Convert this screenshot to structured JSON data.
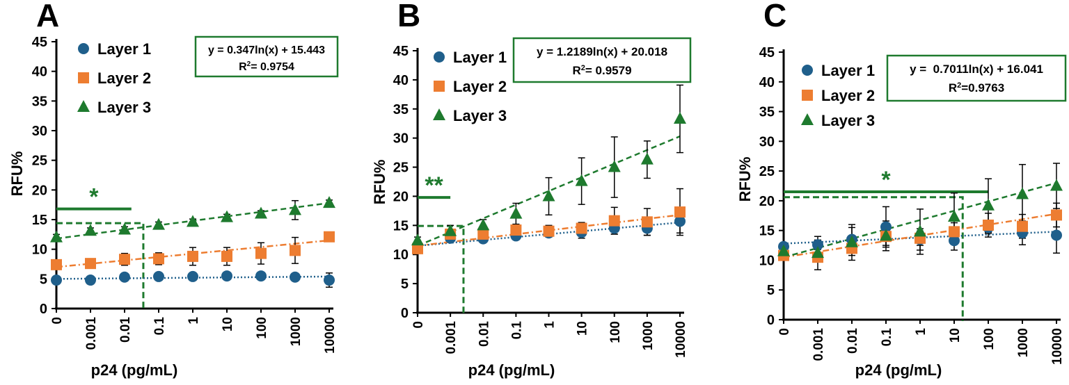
{
  "colors": {
    "layer1": "#1f5f8b",
    "layer2": "#ed7d31",
    "layer3": "#1e7a2e",
    "threshold": "#1e7a2e",
    "axis": "#000000"
  },
  "chart_data": [
    {
      "type": "scatter",
      "panel_label": "A",
      "xlabel": "p24 (pg/mL)",
      "ylabel": "RFU%",
      "categories": [
        "0",
        "0.001",
        "0.01",
        "0.1",
        "1",
        "10",
        "100",
        "1000",
        "10000"
      ],
      "ylim": [
        0,
        45
      ],
      "yticks": [
        "0",
        "5",
        "10",
        "15",
        "20",
        "25",
        "30",
        "35",
        "40",
        "45"
      ],
      "grid": false,
      "legend_position": "top-left",
      "series": [
        {
          "name": "Layer 1",
          "marker": "circle",
          "trend": "dotted",
          "values": [
            4.8,
            4.8,
            5.3,
            5.4,
            5.4,
            5.5,
            5.5,
            5.3,
            4.8
          ],
          "errors": [
            0.5,
            0.4,
            0.5,
            0.4,
            0.4,
            0.4,
            0.4,
            0.5,
            1.2
          ],
          "trend_line": [
            5.0,
            5.4
          ]
        },
        {
          "name": "Layer 2",
          "marker": "square",
          "trend": "dashdot",
          "values": [
            7.4,
            7.6,
            8.3,
            8.4,
            8.8,
            8.8,
            9.3,
            9.8,
            12.1
          ],
          "errors": [
            0.6,
            0.4,
            1.0,
            1.0,
            1.5,
            1.5,
            1.8,
            2.2,
            0.6
          ],
          "trend_line": [
            7.0,
            11.5
          ]
        },
        {
          "name": "Layer 3",
          "marker": "triangle",
          "trend": "dashed",
          "values": [
            12.0,
            13.1,
            13.3,
            14.1,
            14.6,
            15.4,
            16.0,
            16.6,
            17.8
          ],
          "errors": [
            0.5,
            0.5,
            0.5,
            0.5,
            0.5,
            0.5,
            0.5,
            1.6,
            0.5
          ],
          "trend_line": [
            11.8,
            17.8
          ]
        }
      ],
      "equation": {
        "line1": "y = 0.347ln(x) + 15.443",
        "r2_prefix": "R",
        "r2_value": "= 0.9754"
      },
      "significance": {
        "label": "*",
        "bar_y": 16.8,
        "bar_from": 0,
        "bar_to": 2.2
      },
      "lod": {
        "y": 14.4,
        "x": 2.55
      }
    },
    {
      "type": "scatter",
      "panel_label": "B",
      "xlabel": "p24 (pg/mL)",
      "ylabel": "RFU%",
      "categories": [
        "0",
        "0.001",
        "0.01",
        "0.1",
        "1",
        "10",
        "100",
        "1000",
        "10000"
      ],
      "ylim": [
        0,
        45
      ],
      "yticks": [
        "0",
        "5",
        "10",
        "15",
        "20",
        "25",
        "30",
        "35",
        "40",
        "45"
      ],
      "grid": false,
      "legend_position": "top-left",
      "series": [
        {
          "name": "Layer 1",
          "marker": "circle",
          "trend": "dotted",
          "values": [
            11.0,
            12.8,
            12.7,
            13.2,
            13.7,
            13.8,
            14.5,
            14.5,
            15.7
          ],
          "errors": [
            0.6,
            0.5,
            0.5,
            0.5,
            0.5,
            1.0,
            1.0,
            1.2,
            2.0
          ],
          "trend_line": [
            11.5,
            15.5
          ]
        },
        {
          "name": "Layer 2",
          "marker": "square",
          "trend": "dashdot",
          "values": [
            11.0,
            13.5,
            13.5,
            14.2,
            14.0,
            14.5,
            15.8,
            15.6,
            17.3
          ],
          "errors": [
            0.6,
            0.8,
            0.8,
            1.0,
            1.0,
            1.0,
            2.3,
            2.3,
            4.0
          ],
          "trend_line": [
            11.5,
            16.8
          ]
        },
        {
          "name": "Layer 3",
          "marker": "triangle",
          "trend": "dashed",
          "values": [
            12.4,
            14.0,
            15.0,
            17.0,
            20.0,
            22.6,
            25.0,
            26.3,
            33.3
          ],
          "errors": [
            0.6,
            1.0,
            1.0,
            1.8,
            3.2,
            4.0,
            5.2,
            3.2,
            5.8
          ],
          "trend_line": [
            11.5,
            30.3
          ]
        }
      ],
      "equation": {
        "line1": "y = 1.2189ln(x) + 20.018",
        "r2_prefix": "R",
        "r2_value": "= 0.9579"
      },
      "significance": {
        "label": "**",
        "bar_y": 19.8,
        "bar_from": 0,
        "bar_to": 1.0
      },
      "lod": {
        "y": 14.9,
        "x": 1.4
      }
    },
    {
      "type": "scatter",
      "panel_label": "C",
      "xlabel": "p24 (pg/mL)",
      "ylabel": "RFU%",
      "categories": [
        "0",
        "0.001",
        "0.01",
        "0.1",
        "1",
        "10",
        "100",
        "1000",
        "10000"
      ],
      "ylim": [
        0,
        45
      ],
      "yticks": [
        "0",
        "5",
        "10",
        "15",
        "20",
        "25",
        "30",
        "35",
        "40",
        "45"
      ],
      "grid": false,
      "legend_position": "top-left",
      "series": [
        {
          "name": "Layer 1",
          "marker": "circle",
          "trend": "dotted",
          "values": [
            12.3,
            12.6,
            13.5,
            15.6,
            13.5,
            13.3,
            15.5,
            14.6,
            14.2
          ],
          "errors": [
            0.6,
            0.8,
            2.0,
            3.4,
            1.8,
            1.6,
            1.0,
            2.0,
            3.0
          ],
          "trend_line": [
            12.8,
            14.8
          ]
        },
        {
          "name": "Layer 2",
          "marker": "square",
          "trend": "dashdot",
          "values": [
            10.8,
            10.5,
            12.0,
            14.0,
            13.7,
            14.8,
            15.9,
            15.7,
            17.6
          ],
          "errors": [
            0.6,
            0.8,
            1.2,
            1.5,
            1.2,
            1.5,
            2.0,
            2.0,
            2.0
          ],
          "trend_line": [
            10.5,
            17.8
          ]
        },
        {
          "name": "Layer 3",
          "marker": "triangle",
          "trend": "dashed",
          "values": [
            11.5,
            11.2,
            13.0,
            14.1,
            14.8,
            17.3,
            19.2,
            21.1,
            22.5
          ],
          "errors": [
            0.8,
            2.8,
            3.0,
            2.5,
            3.8,
            4.0,
            4.5,
            5.0,
            3.8
          ],
          "trend_line": [
            10.5,
            23.0
          ]
        }
      ],
      "equation": {
        "line1": "y =  0.7011ln(x) + 16.041",
        "r2_prefix": "R",
        "r2_value": "=0.9763"
      },
      "significance": {
        "label": "*",
        "bar_y": 21.5,
        "bar_from": 0,
        "bar_to": 6.0
      },
      "lod": {
        "y": 20.6,
        "x": 5.25
      }
    }
  ]
}
